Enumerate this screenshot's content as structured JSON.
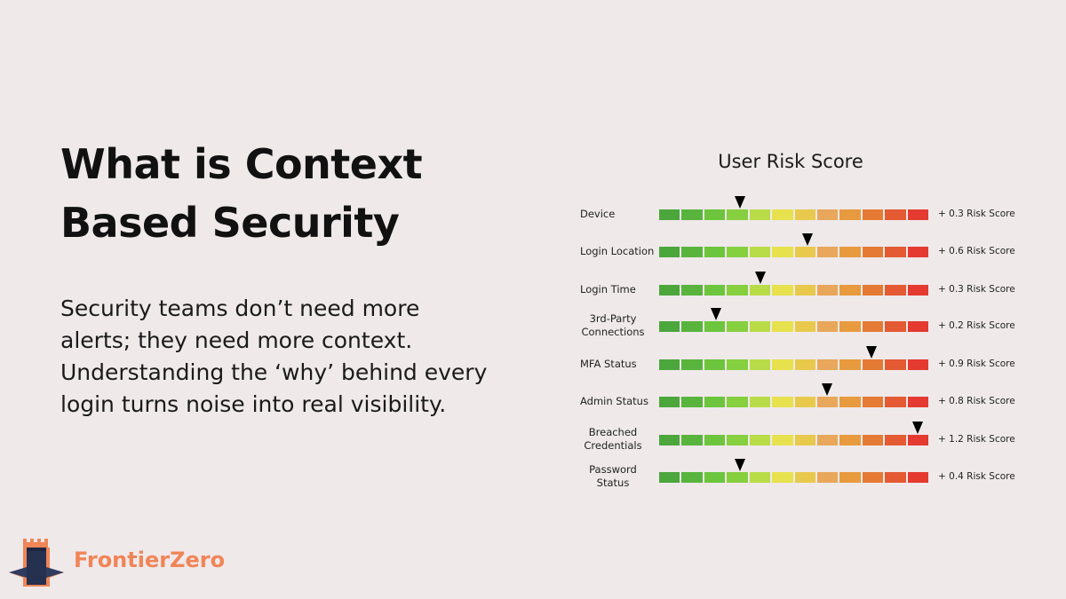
{
  "headline": {
    "line1": "What is Context",
    "line2": "Based Security"
  },
  "body": {
    "line1": "Security teams don’t need more",
    "line2": "alerts; they need more context.",
    "line3": "Understanding the ‘why’ behind every",
    "line4": "login turns noise into real visibility."
  },
  "risk_chart": {
    "title": "User Risk Score",
    "segment_colors": [
      "#4ba63c",
      "#58b43c",
      "#6cc53c",
      "#86cf3f",
      "#b8dc48",
      "#e6e14d",
      "#e8c94c",
      "#e8a75a",
      "#e89a3e",
      "#e57a34",
      "#e45a32",
      "#e43a30"
    ],
    "rows": [
      {
        "label_lines": [
          "Device"
        ],
        "marker_position": 0.3,
        "score_text": "+ 0.3 Risk Score"
      },
      {
        "label_lines": [
          "Login Location"
        ],
        "marker_position": 0.55,
        "score_text": "+ 0.6 Risk Score"
      },
      {
        "label_lines": [
          "Login Time"
        ],
        "marker_position": 0.375,
        "score_text": "+ 0.3 Risk Score"
      },
      {
        "label_lines": [
          "3rd-Party",
          "Connections"
        ],
        "marker_position": 0.21,
        "score_text": "+ 0.2 Risk Score"
      },
      {
        "label_lines": [
          "MFA Status"
        ],
        "marker_position": 0.79,
        "score_text": "+ 0.9 Risk Score"
      },
      {
        "label_lines": [
          "Admin Status"
        ],
        "marker_position": 0.625,
        "score_text": "+ 0.8 Risk Score"
      },
      {
        "label_lines": [
          "Breached",
          "Credentials"
        ],
        "marker_position": 0.96,
        "score_text": "+ 1.2 Risk Score"
      },
      {
        "label_lines": [
          "Password",
          "Status"
        ],
        "marker_position": 0.3,
        "score_text": "+ 0.4 Risk Score"
      }
    ]
  },
  "brand": {
    "name": "FrontierZero",
    "color": "#f08557",
    "icon": "castle-tower-icon"
  }
}
